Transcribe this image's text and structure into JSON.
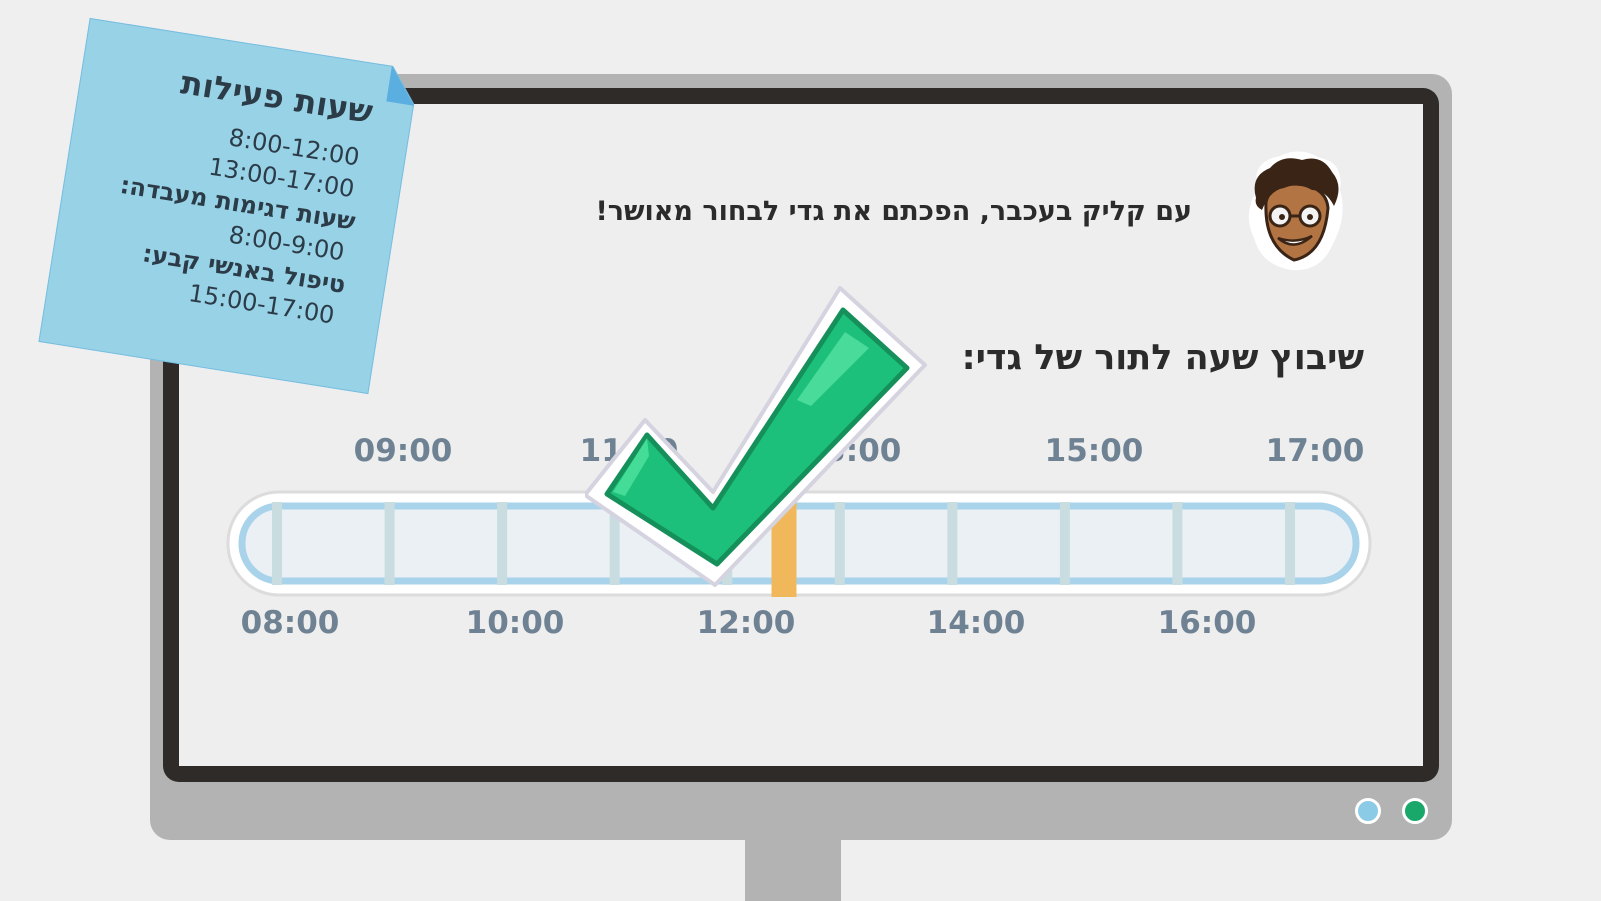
{
  "message": "עם קליק בעכבר, הפכתם את גדי לבחור מאושר!",
  "slot_heading": "שיבוץ שעה לתור של גדי:",
  "timeline": {
    "top_labels": [
      "09:00",
      "11:00",
      "13:00",
      "15:00",
      "17:00"
    ],
    "bottom_labels": [
      "08:00",
      "10:00",
      "12:00",
      "14:00",
      "16:00"
    ],
    "range_start": "08:00",
    "range_end": "17:00",
    "selected_time": "12:30",
    "selected_color": "#f0b85a"
  },
  "sticky_note": {
    "title": "שעות פעילות",
    "hours": [
      "8:00-12:00",
      "13:00-17:00"
    ],
    "lab_title": "שעות דגימות מעבדה:",
    "lab_hours": "8:00-9:00",
    "regular_title": "טיפול באנשי קבע:",
    "regular_hours": "15:00-17:00"
  },
  "icons": {
    "avatar": "cartoon-avatar-icon",
    "checkmark": "green-checkmark-icon",
    "led_blue": "status-light-blue",
    "led_green": "status-light-green"
  },
  "colors": {
    "check_green": "#1dc07a",
    "sticky_blue": "#98d2e6",
    "label_gray": "#6f8293"
  }
}
